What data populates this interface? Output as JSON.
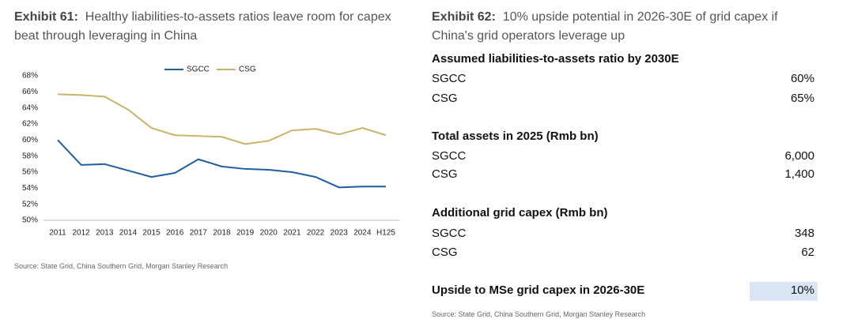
{
  "exhibit61": {
    "label": "Exhibit 61:",
    "title": "Healthy liabilities-to-assets ratios leave room for capex beat through leveraging in China",
    "source": "Source: State Grid, China Southern Grid, Morgan Stanley Research"
  },
  "chart_data": {
    "type": "line",
    "categories": [
      "2011",
      "2012",
      "2013",
      "2014",
      "2015",
      "2016",
      "2017",
      "2018",
      "2019",
      "2020",
      "2021",
      "2022",
      "2023",
      "2024",
      "H125"
    ],
    "series": [
      {
        "name": "SGCC",
        "color": "#1f5f9e",
        "values": [
          60.0,
          56.9,
          57.0,
          56.2,
          55.4,
          55.9,
          57.6,
          56.7,
          56.4,
          56.3,
          56.0,
          55.4,
          54.1,
          54.2,
          54.2
        ]
      },
      {
        "name": "CSG",
        "color": "#c9b46a",
        "values": [
          65.7,
          65.6,
          65.4,
          63.8,
          61.5,
          60.6,
          60.5,
          60.4,
          59.5,
          59.9,
          61.2,
          61.4,
          60.7,
          61.5,
          60.6
        ]
      }
    ],
    "ylim": [
      50,
      68
    ],
    "yticks": [
      {
        "value": 50,
        "label": "50%"
      },
      {
        "value": 52,
        "label": "52%"
      },
      {
        "value": 54,
        "label": "54%"
      },
      {
        "value": 56,
        "label": "56%"
      },
      {
        "value": 58,
        "label": "58%"
      },
      {
        "value": 60,
        "label": "60%"
      },
      {
        "value": 62,
        "label": "62%"
      },
      {
        "value": 64,
        "label": "64%"
      },
      {
        "value": 66,
        "label": "66%"
      },
      {
        "value": 68,
        "label": "68%"
      }
    ],
    "grid": false,
    "legend": "top"
  },
  "exhibit62": {
    "label": "Exhibit 62:",
    "title": "10% upside potential in 2026-30E of grid capex if China's grid operators leverage up",
    "sections": [
      {
        "heading": "Assumed liabilities-to-assets ratio by 2030E",
        "rows": [
          [
            "SGCC",
            "60%"
          ],
          [
            "CSG",
            "65%"
          ]
        ]
      },
      {
        "heading": "Total assets in 2025 (Rmb bn)",
        "rows": [
          [
            "SGCC",
            "6,000"
          ],
          [
            "CSG",
            "1,400"
          ]
        ]
      },
      {
        "heading": "Additional grid capex (Rmb bn)",
        "rows": [
          [
            "SGCC",
            "348"
          ],
          [
            "CSG",
            "62"
          ]
        ]
      }
    ],
    "total": [
      "Upside to MSe grid capex in 2026-30E",
      "10%"
    ],
    "source": "Source: State Grid, China Southern Grid, Morgan Stanley Research"
  }
}
